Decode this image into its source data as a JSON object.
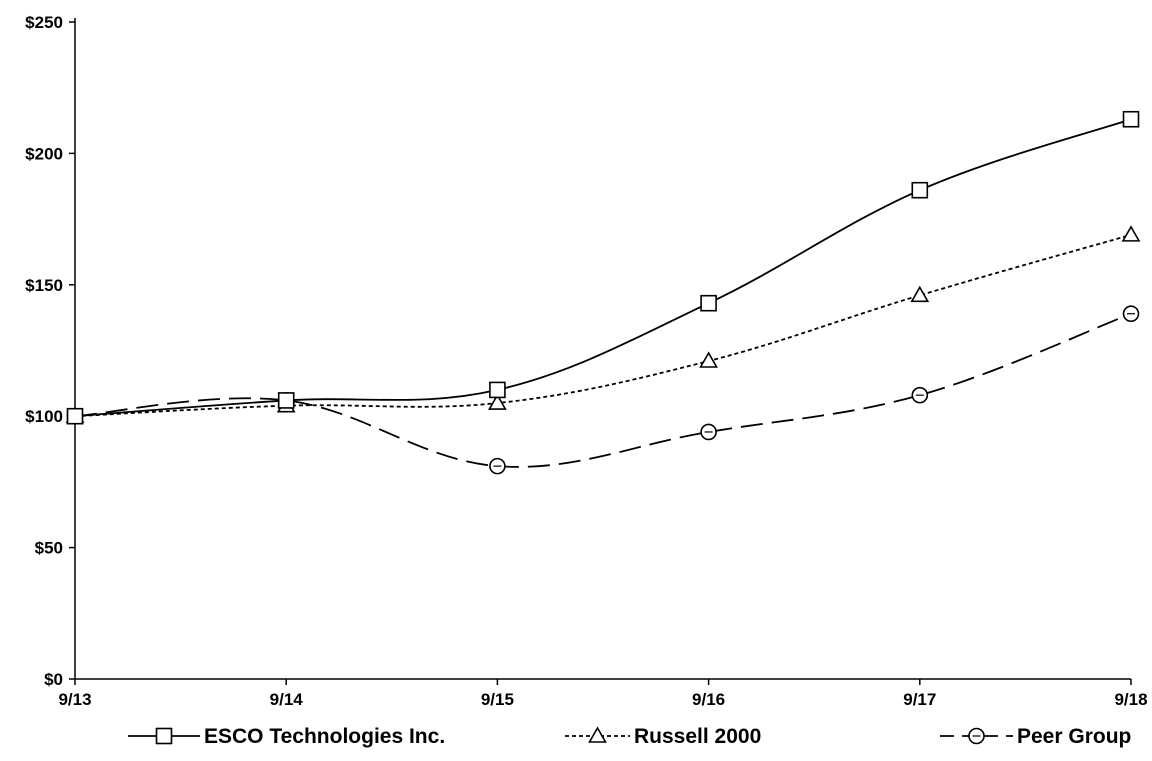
{
  "chart_data": {
    "type": "line",
    "title": "",
    "xlabel": "",
    "ylabel": "",
    "categories": [
      "9/13",
      "9/14",
      "9/15",
      "9/16",
      "9/17",
      "9/18"
    ],
    "ylim": [
      0,
      250
    ],
    "yticks": [
      0,
      50,
      100,
      150,
      200,
      250
    ],
    "ytick_labels": [
      "$0",
      "$50",
      "$100",
      "$150",
      "$200",
      "$250"
    ],
    "grid": false,
    "legend_position": "bottom",
    "series": [
      {
        "name": "ESCO Technologies Inc.",
        "values": [
          100,
          106,
          110,
          143,
          186,
          213
        ],
        "marker": "square",
        "line_style": "solid",
        "color": "#000000"
      },
      {
        "name": "Russell 2000",
        "values": [
          100,
          104,
          105,
          121,
          146,
          169
        ],
        "marker": "triangle",
        "line_style": "dotted",
        "color": "#000000"
      },
      {
        "name": "Peer Group",
        "values": [
          100,
          106,
          81,
          94,
          108,
          139
        ],
        "marker": "circle-with-dash",
        "line_style": "dashed",
        "color": "#000000"
      }
    ]
  }
}
